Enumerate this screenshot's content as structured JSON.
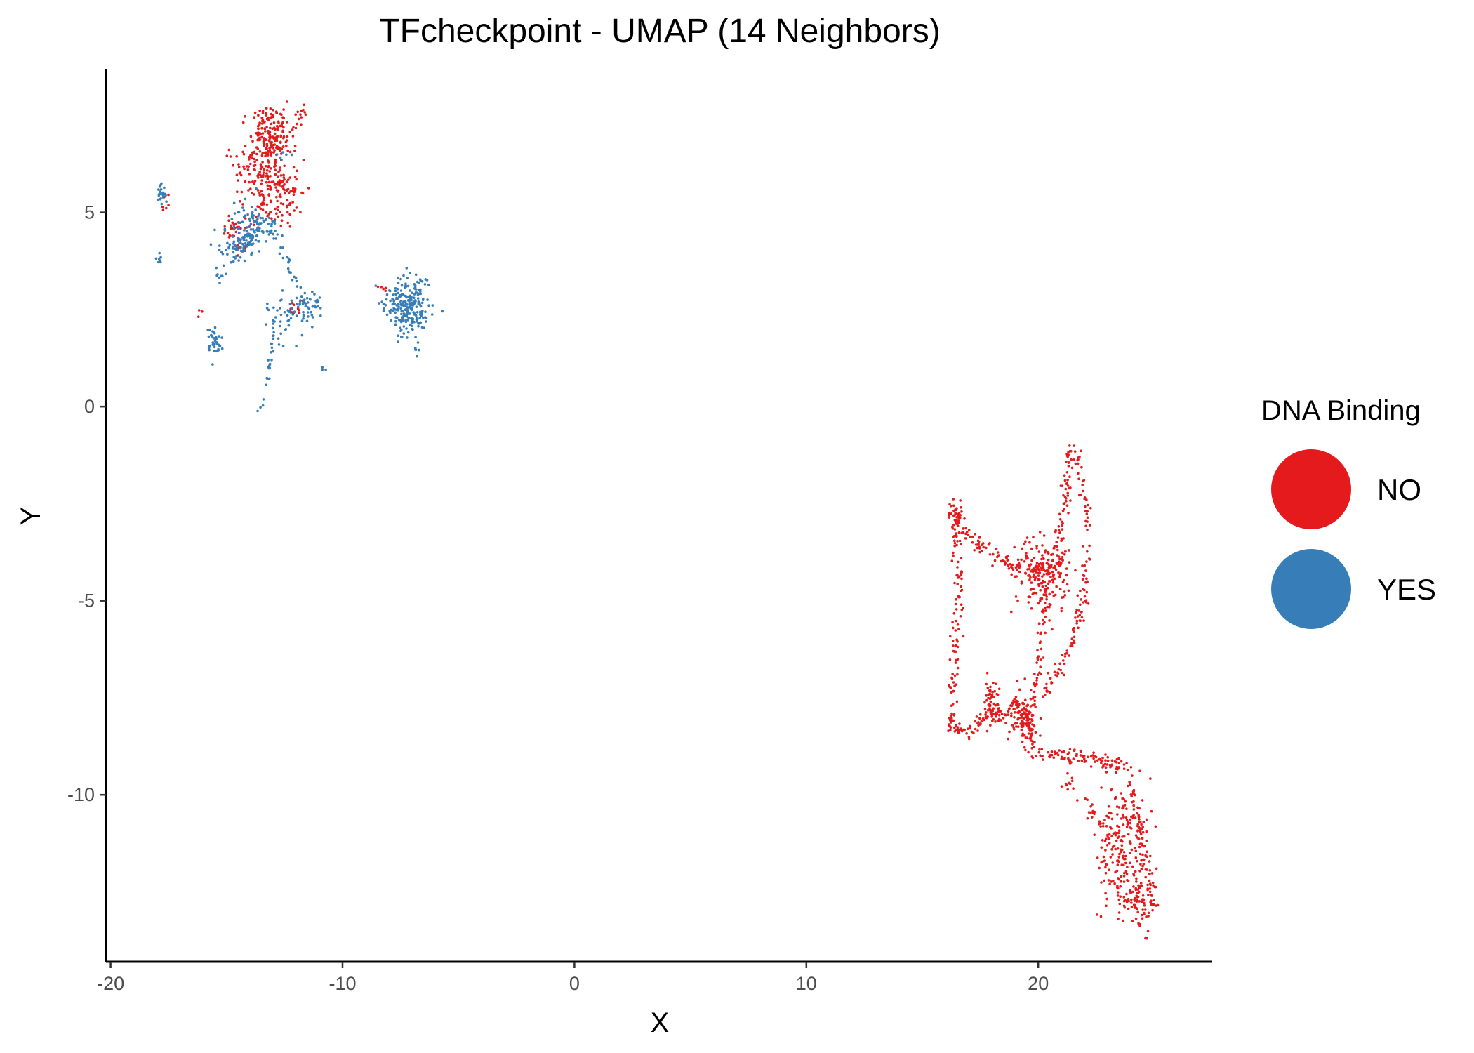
{
  "chart_data": {
    "type": "scatter",
    "title": "TFcheckpoint - UMAP (14 Neighbors)",
    "xlabel": "X",
    "ylabel": "Y",
    "xlim": [
      -20.2,
      27.5
    ],
    "ylim": [
      -14.3,
      8.7
    ],
    "xticks": [
      -20,
      -10,
      0,
      10,
      20
    ],
    "xtick_labels": [
      "-20",
      "-10",
      "0",
      "10",
      "20"
    ],
    "yticks": [
      -10,
      -5,
      0,
      5
    ],
    "ytick_labels": [
      "-10",
      "-5",
      "0",
      "5"
    ],
    "grid": false,
    "legend": {
      "title": "DNA Binding",
      "position": "right"
    },
    "series": [
      {
        "name": "NO",
        "color": "#e41a1c",
        "clusters": [
          {
            "cx": -13.1,
            "cy": 7.0,
            "sx": 0.45,
            "sy": 0.35,
            "n": 180
          },
          {
            "cx": -13.0,
            "cy": 5.6,
            "sx": 0.6,
            "sy": 0.5,
            "n": 170
          },
          {
            "cx": -14.7,
            "cy": 4.6,
            "sx": 0.3,
            "sy": 0.15,
            "n": 30
          },
          {
            "cx": -13.8,
            "cy": 6.2,
            "sx": 0.6,
            "sy": 0.4,
            "n": 60
          },
          {
            "cx": -11.8,
            "cy": 7.5,
            "sx": 0.15,
            "sy": 0.15,
            "n": 12
          },
          {
            "cx": -14.3,
            "cy": 4.0,
            "sx": 0.15,
            "sy": 0.1,
            "n": 10
          },
          {
            "cx": -12.0,
            "cy": 2.5,
            "sx": 0.25,
            "sy": 0.1,
            "n": 10
          },
          {
            "cx": -17.6,
            "cy": 5.3,
            "sx": 0.1,
            "sy": 0.15,
            "n": 6
          },
          {
            "cx": -8.3,
            "cy": 3.05,
            "sx": 0.15,
            "sy": 0.05,
            "n": 5
          },
          {
            "cx": -16.1,
            "cy": 2.4,
            "sx": 0.05,
            "sy": 0.05,
            "n": 3
          },
          {
            "cx": 20.2,
            "cy": -4.3,
            "sx": 0.6,
            "sy": 0.5,
            "n": 170
          },
          {
            "cx": 23.6,
            "cy": -11.2,
            "sx": 0.5,
            "sy": 0.8,
            "n": 160
          },
          {
            "cx": 24.3,
            "cy": -12.6,
            "sx": 0.35,
            "sy": 0.5,
            "n": 90
          },
          {
            "cx": 19.3,
            "cy": -8.0,
            "sx": 0.25,
            "sy": 0.35,
            "n": 90
          },
          {
            "cx": 18.0,
            "cy": -7.6,
            "sx": 0.15,
            "sy": 0.3,
            "n": 50
          }
        ],
        "paths": [
          {
            "pts": [
              [
                16.1,
                -2.3
              ],
              [
                16.9,
                -3.3
              ],
              [
                18.3,
                -3.9
              ],
              [
                19.7,
                -4.3
              ],
              [
                20.7,
                -4.2
              ],
              [
                21.2,
                -2.3
              ],
              [
                21.4,
                -1.0
              ]
            ],
            "n": 200,
            "spread": 0.25
          },
          {
            "pts": [
              [
                16.3,
                -2.4
              ],
              [
                16.6,
                -4.5
              ],
              [
                16.4,
                -6.5
              ],
              [
                16.2,
                -8.3
              ]
            ],
            "n": 120,
            "spread": 0.25
          },
          {
            "pts": [
              [
                21.6,
                -1.0
              ],
              [
                22.2,
                -3.0
              ],
              [
                22.0,
                -5.0
              ],
              [
                21.2,
                -6.5
              ],
              [
                20.0,
                -7.6
              ]
            ],
            "n": 120,
            "spread": 0.2
          },
          {
            "pts": [
              [
                20.3,
                -4.8
              ],
              [
                20.1,
                -6.2
              ],
              [
                19.8,
                -7.4
              ],
              [
                19.6,
                -8.6
              ]
            ],
            "n": 80,
            "spread": 0.2
          },
          {
            "pts": [
              [
                16.2,
                -8.3
              ],
              [
                17.0,
                -8.4
              ],
              [
                18.0,
                -7.8
              ],
              [
                18.7,
                -8.0
              ]
            ],
            "n": 70,
            "spread": 0.25
          },
          {
            "pts": [
              [
                19.5,
                -8.8
              ],
              [
                20.5,
                -9.0
              ],
              [
                22.0,
                -9.0
              ],
              [
                23.8,
                -9.3
              ],
              [
                24.3,
                -10.5
              ]
            ],
            "n": 120,
            "spread": 0.2
          },
          {
            "pts": [
              [
                24.3,
                -10.5
              ],
              [
                24.7,
                -12.0
              ],
              [
                25.0,
                -13.0
              ]
            ],
            "n": 60,
            "spread": 0.25
          },
          {
            "pts": [
              [
                21.0,
                -9.6
              ],
              [
                22.5,
                -10.5
              ],
              [
                23.0,
                -12.0
              ],
              [
                24.0,
                -13.0
              ]
            ],
            "n": 60,
            "spread": 0.3
          },
          {
            "pts": [
              [
                18.3,
                -8.2
              ],
              [
                19.0,
                -7.6
              ],
              [
                19.5,
                -7.9
              ],
              [
                19.8,
                -8.8
              ]
            ],
            "n": 60,
            "spread": 0.08
          }
        ]
      },
      {
        "name": "YES",
        "color": "#377eb8",
        "clusters": [
          {
            "cx": -7.2,
            "cy": 2.6,
            "sx": 0.45,
            "sy": 0.35,
            "n": 260
          },
          {
            "cx": -13.9,
            "cy": 4.6,
            "sx": 0.5,
            "sy": 0.3,
            "n": 130
          },
          {
            "cx": -14.6,
            "cy": 4.1,
            "sx": 0.35,
            "sy": 0.2,
            "n": 50
          },
          {
            "cx": -15.5,
            "cy": 1.7,
            "sx": 0.18,
            "sy": 0.18,
            "n": 40
          },
          {
            "cx": -17.8,
            "cy": 5.4,
            "sx": 0.08,
            "sy": 0.15,
            "n": 20
          },
          {
            "cx": -17.9,
            "cy": 3.8,
            "sx": 0.05,
            "sy": 0.08,
            "n": 8
          },
          {
            "cx": -11.5,
            "cy": 2.6,
            "sx": 0.35,
            "sy": 0.2,
            "n": 50
          },
          {
            "cx": -12.6,
            "cy": 2.3,
            "sx": 0.4,
            "sy": 0.3,
            "n": 40
          },
          {
            "cx": -6.8,
            "cy": 1.4,
            "sx": 0.05,
            "sy": 0.1,
            "n": 5
          },
          {
            "cx": -15.3,
            "cy": 3.4,
            "sx": 0.15,
            "sy": 0.1,
            "n": 8
          },
          {
            "cx": -12.6,
            "cy": 6.5,
            "sx": 0.15,
            "sy": 0.1,
            "n": 6
          },
          {
            "cx": -10.8,
            "cy": 1.0,
            "sx": 0.05,
            "sy": 0.05,
            "n": 3
          }
        ],
        "paths": [
          {
            "pts": [
              [
                -12.9,
                2.3
              ],
              [
                -13.0,
                1.5
              ],
              [
                -13.3,
                0.6
              ],
              [
                -13.6,
                -0.2
              ]
            ],
            "n": 25,
            "spread": 0.1
          },
          {
            "pts": [
              [
                -12.9,
                4.5
              ],
              [
                -12.4,
                3.8
              ],
              [
                -12.0,
                3.2
              ],
              [
                -11.8,
                2.6
              ]
            ],
            "n": 25,
            "spread": 0.15
          }
        ]
      }
    ]
  }
}
